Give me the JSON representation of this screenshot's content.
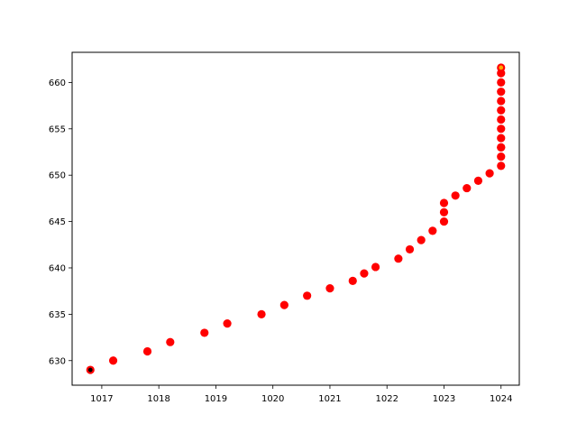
{
  "chart_data": {
    "type": "scatter",
    "title": "",
    "xlabel": "",
    "ylabel": "",
    "xlim": [
      1016.48,
      1024.32
    ],
    "ylim": [
      627.35,
      663.25
    ],
    "xticks": [
      1017,
      1018,
      1019,
      1020,
      1021,
      1022,
      1023,
      1024
    ],
    "yticks": [
      630,
      635,
      640,
      645,
      650,
      655,
      660
    ],
    "grid": false,
    "legend": "none",
    "series": [
      {
        "color": "#ff0000",
        "x": [
          1016.8,
          1017.2,
          1017.8,
          1018.2,
          1018.8,
          1019.2,
          1019.8,
          1020.2,
          1020.6,
          1021.0,
          1021.4,
          1021.6,
          1021.8,
          1022.2,
          1022.4,
          1022.6,
          1022.8,
          1023.0,
          1023.0,
          1023.0,
          1023.2,
          1023.4,
          1023.6,
          1023.8,
          1024.0,
          1024.0,
          1024.0,
          1024.0,
          1024.0,
          1024.0,
          1024.0,
          1024.0,
          1024.0,
          1024.0,
          1024.0,
          1024.0,
          1024.0
        ],
        "y": [
          629.0,
          630.0,
          631.0,
          632.0,
          633.0,
          634.0,
          635.0,
          636.0,
          637.0,
          637.8,
          638.6,
          639.4,
          640.1,
          641.0,
          642.0,
          643.0,
          644.0,
          645.0,
          646.0,
          647.0,
          647.8,
          648.6,
          649.4,
          650.2,
          651.0,
          652.0,
          653.0,
          653.0,
          654.0,
          655.0,
          656.0,
          657.0,
          658.0,
          659.0,
          660.0,
          661.0,
          661.6
        ]
      }
    ],
    "markers": [
      {
        "role": "start",
        "x": 1016.8,
        "y": 629.0,
        "color": "#000000"
      },
      {
        "role": "end",
        "x": 1024.0,
        "y": 661.6,
        "color": "#ffa500"
      }
    ]
  }
}
